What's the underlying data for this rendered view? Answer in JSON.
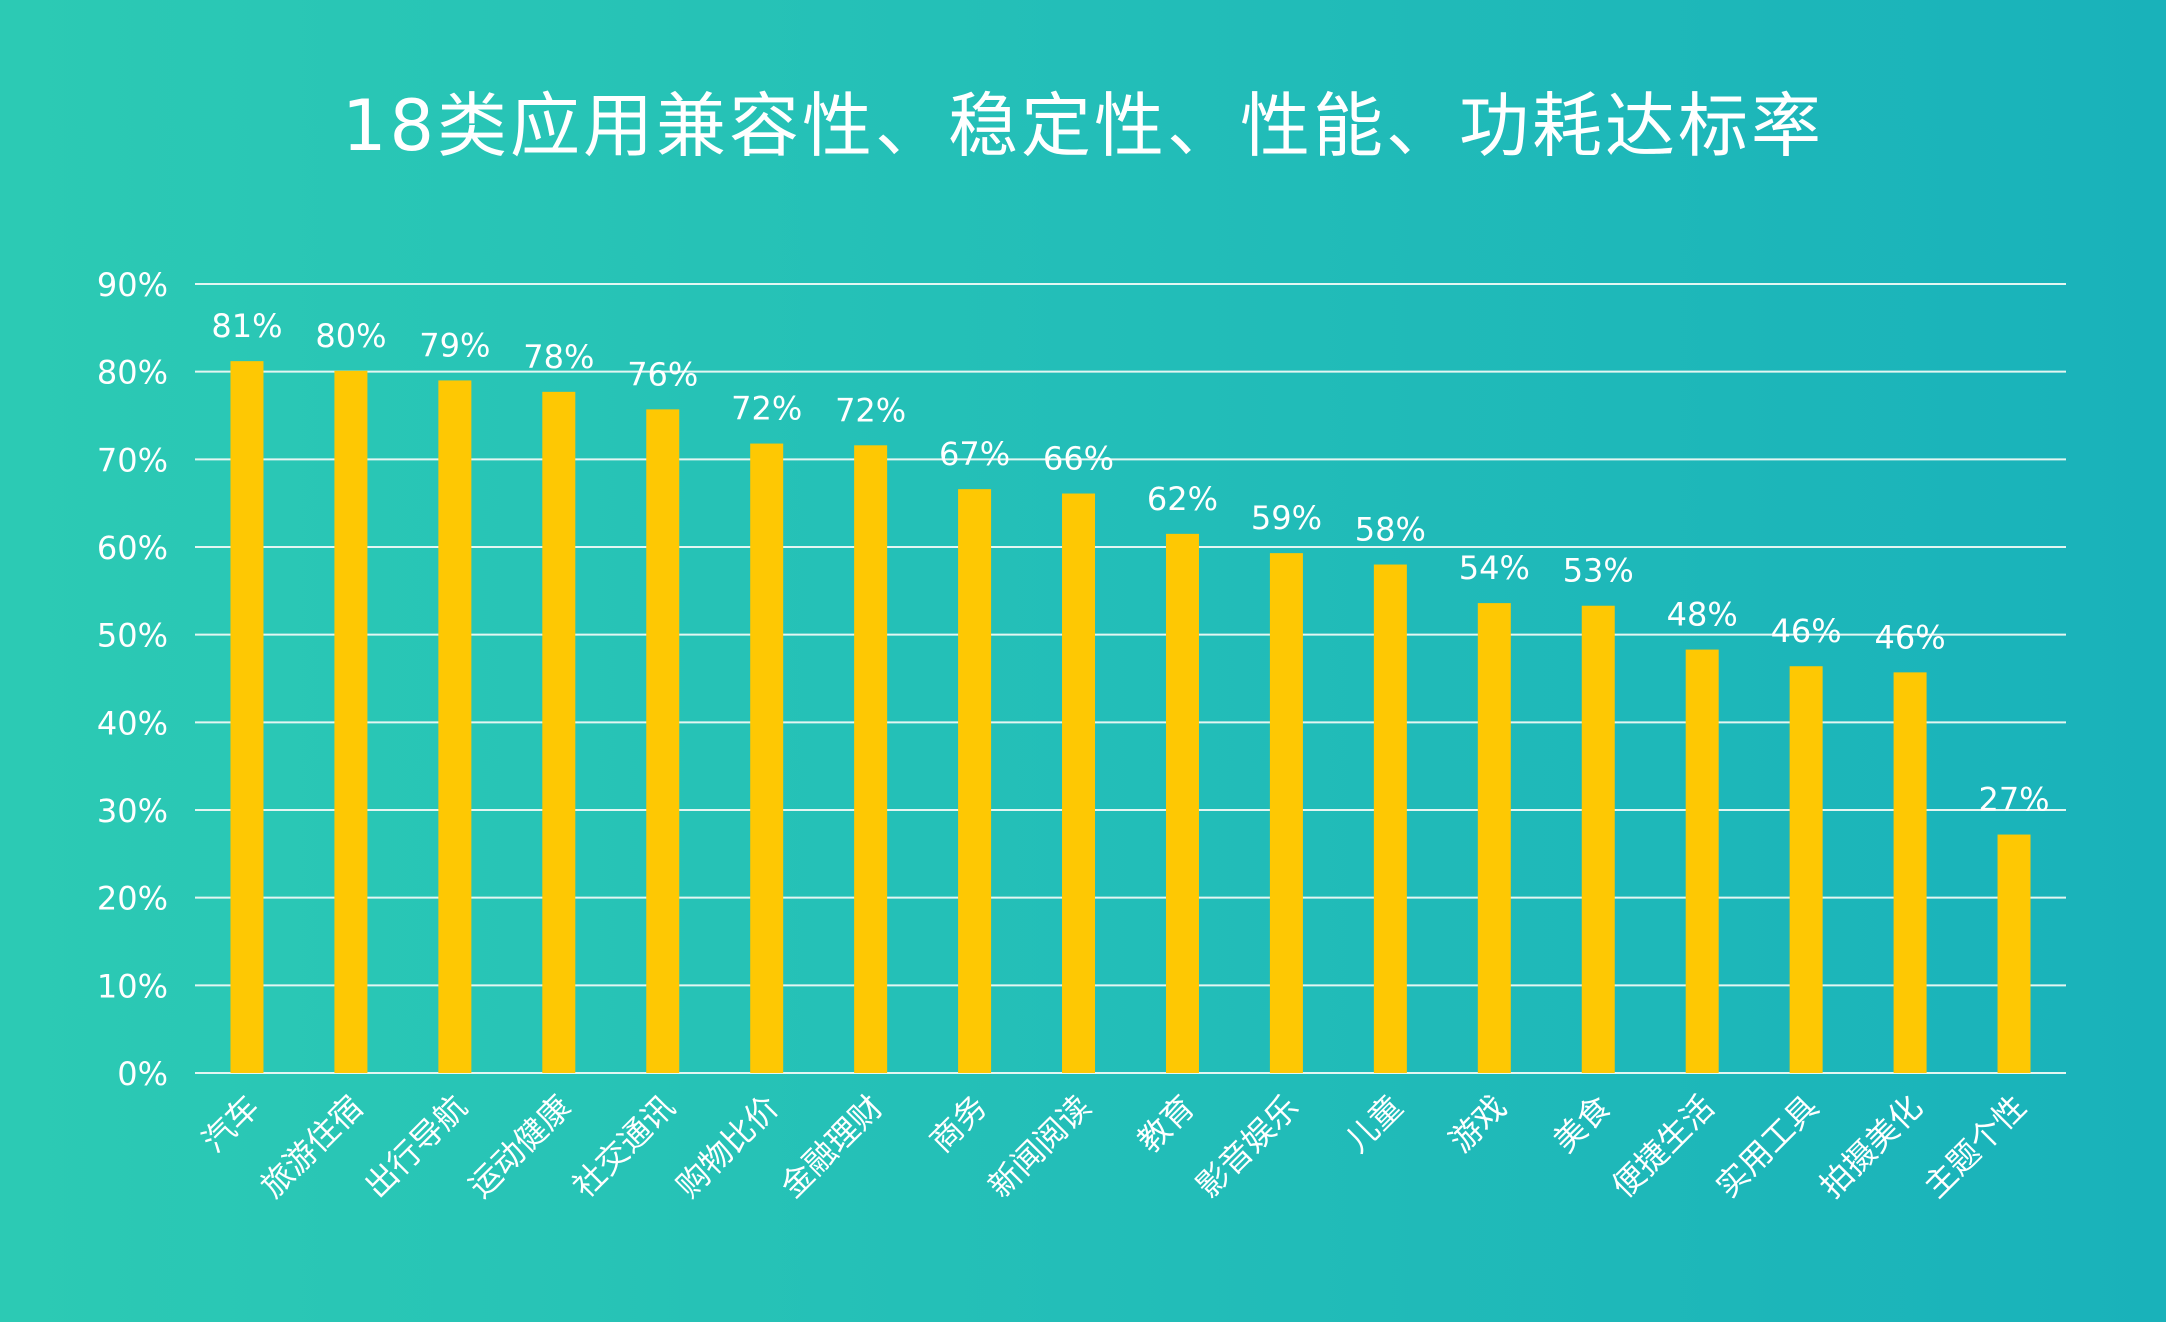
{
  "chart_data": {
    "type": "bar",
    "title": "18类应用兼容性、稳定性、性能、功耗达标率",
    "xlabel": "",
    "ylabel": "",
    "ylim": [
      0,
      90
    ],
    "y_ticks": [
      0,
      10,
      20,
      30,
      40,
      50,
      60,
      70,
      80,
      90
    ],
    "y_tick_labels": [
      "0%",
      "10%",
      "20%",
      "30%",
      "40%",
      "50%",
      "60%",
      "70%",
      "80%",
      "90%"
    ],
    "grid": true,
    "legend": "none",
    "categories": [
      "汽车",
      "旅游住宿",
      "出行导航",
      "运动健康",
      "社交通讯",
      "购物比价",
      "金融理财",
      "商务",
      "新闻阅读",
      "教育",
      "影音娱乐",
      "儿童",
      "游戏",
      "美食",
      "便捷生活",
      "实用工具",
      "拍摄美化",
      "主题个性"
    ],
    "values": [
      81.2,
      80.1,
      79.0,
      77.7,
      75.7,
      71.8,
      71.6,
      66.6,
      66.1,
      61.5,
      59.3,
      58.0,
      53.6,
      53.3,
      48.3,
      46.4,
      45.7,
      27.2
    ],
    "data_labels": [
      "81%",
      "80%",
      "79%",
      "78%",
      "76%",
      "72%",
      "72%",
      "67%",
      "66%",
      "62%",
      "59%",
      "58%",
      "54%",
      "53%",
      "48%",
      "46%",
      "46%",
      "27%"
    ],
    "colors": {
      "bar": "#fec803",
      "grid": "#e3f6f2",
      "text": "#ffffff"
    }
  }
}
